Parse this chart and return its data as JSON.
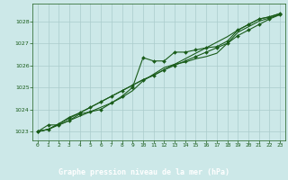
{
  "title": "Graphe pression niveau de la mer (hPa)",
  "bg_color": "#cce8e8",
  "plot_bg_color": "#cce8e8",
  "grid_color": "#aacccc",
  "line_color": "#1a5c1a",
  "marker_color": "#1a5c1a",
  "title_bg_color": "#336633",
  "title_fg_color": "#ffffff",
  "xlim": [
    -0.5,
    23.5
  ],
  "ylim": [
    1022.6,
    1028.8
  ],
  "yticks": [
    1023,
    1024,
    1025,
    1026,
    1027,
    1028
  ],
  "xticks": [
    0,
    1,
    2,
    3,
    4,
    5,
    6,
    7,
    8,
    9,
    10,
    11,
    12,
    13,
    14,
    15,
    16,
    17,
    18,
    19,
    20,
    21,
    22,
    23
  ],
  "series1": [
    1023.0,
    1023.3,
    1023.3,
    1023.5,
    1023.8,
    1023.9,
    1024.0,
    1024.3,
    1024.6,
    1025.0,
    1026.35,
    1026.2,
    1026.2,
    1026.6,
    1026.6,
    1026.7,
    1026.8,
    1026.85,
    1027.1,
    1027.6,
    1027.85,
    1028.1,
    1028.2,
    1028.35
  ],
  "series2": [
    1023.0,
    1023.1,
    1023.3,
    1023.5,
    1023.7,
    1023.9,
    1024.1,
    1024.3,
    1024.55,
    1024.85,
    1025.3,
    1025.6,
    1025.9,
    1026.05,
    1026.15,
    1026.3,
    1026.4,
    1026.55,
    1027.0,
    1027.5,
    1027.75,
    1028.0,
    1028.15,
    1028.3
  ],
  "series3": [
    1023.0,
    1023.1,
    1023.35,
    1023.6,
    1023.85,
    1024.1,
    1024.35,
    1024.6,
    1024.85,
    1025.1,
    1025.35,
    1025.55,
    1025.8,
    1026.0,
    1026.2,
    1026.4,
    1026.6,
    1026.8,
    1027.0,
    1027.35,
    1027.6,
    1027.85,
    1028.1,
    1028.3
  ],
  "series4": [
    1023.0,
    1023.1,
    1023.35,
    1023.65,
    1023.85,
    1024.1,
    1024.35,
    1024.6,
    1024.85,
    1025.1,
    1025.35,
    1025.55,
    1025.8,
    1026.05,
    1026.3,
    1026.55,
    1026.8,
    1027.05,
    1027.3,
    1027.6,
    1027.85,
    1028.1,
    1028.2,
    1028.35
  ]
}
